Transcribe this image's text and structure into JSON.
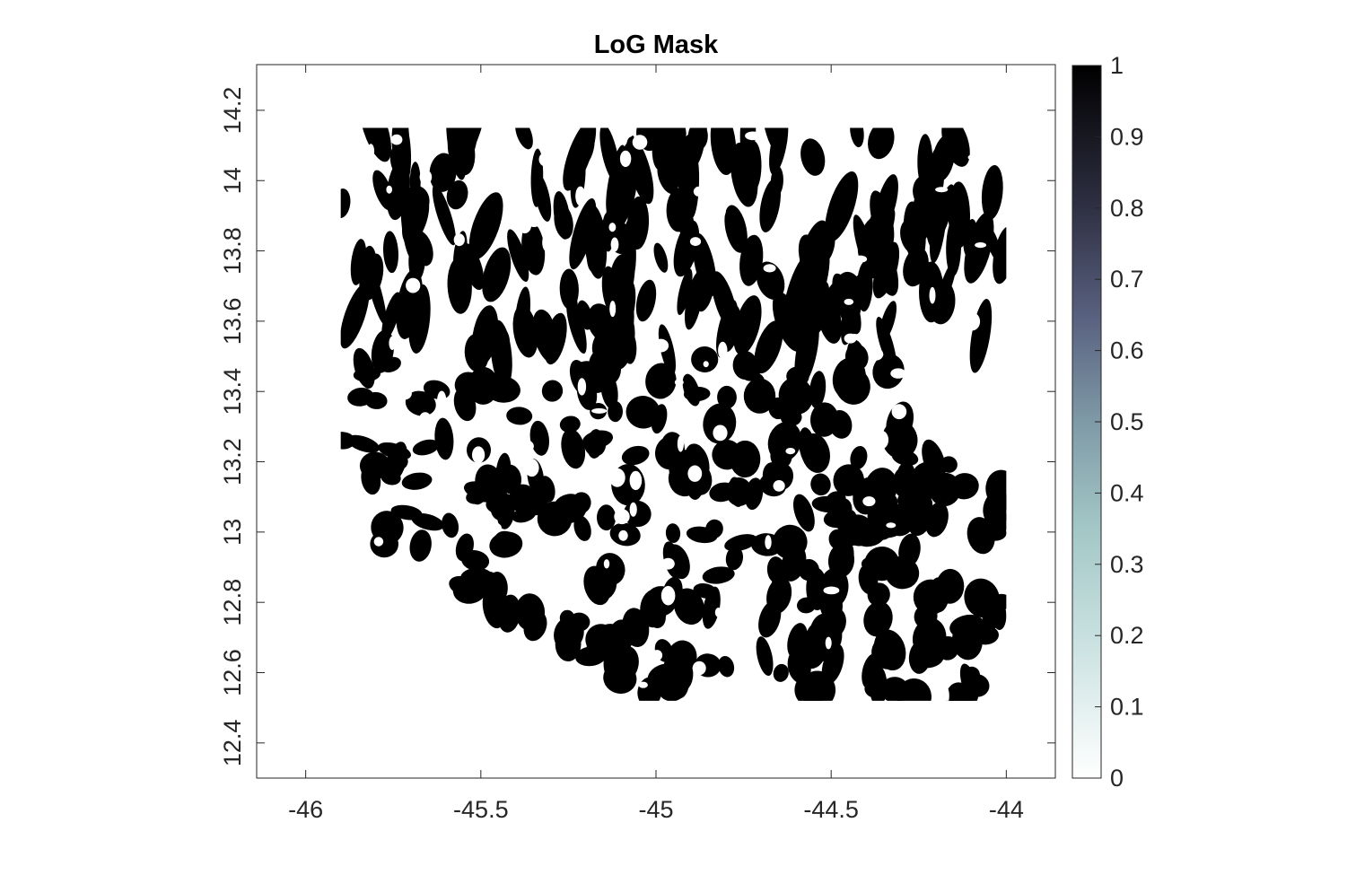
{
  "chart_data": {
    "type": "heatmap",
    "title": "LoG Mask",
    "xlabel": "",
    "ylabel": "",
    "xlim": [
      -46.14,
      -43.86
    ],
    "ylim": [
      12.3,
      14.33
    ],
    "x_ticks": [
      -46,
      -45.5,
      -45,
      -44.5,
      -44
    ],
    "x_tick_labels": [
      "-46",
      "-45.5",
      "-45",
      "-44.5",
      "-44"
    ],
    "y_ticks": [
      12.4,
      12.6,
      12.8,
      13,
      13.2,
      13.4,
      13.6,
      13.8,
      14,
      14.2
    ],
    "y_tick_labels": [
      "12.4",
      "12.6",
      "12.8",
      "13",
      "13.2",
      "13.4",
      "13.6",
      "13.8",
      "14",
      "14.2"
    ],
    "grid": false,
    "data_extent": {
      "x": [
        -45.9,
        -44.0
      ],
      "y": [
        12.52,
        14.15
      ]
    },
    "value_range": [
      0,
      1
    ],
    "description_values": "binary mask: 1 = black blobs, 0 = white",
    "colorbar": {
      "location": "right",
      "ticks": [
        0,
        0.1,
        0.2,
        0.3,
        0.4,
        0.5,
        0.6,
        0.7,
        0.8,
        0.9,
        1
      ],
      "tick_labels": [
        "0",
        "0.1",
        "0.2",
        "0.3",
        "0.4",
        "0.5",
        "0.6",
        "0.7",
        "0.8",
        "0.9",
        "1"
      ],
      "colormap": [
        "#ffffff",
        "#a8cccc",
        "#8aa0ac",
        "#5a5d80",
        "#2a2a3e",
        "#000000"
      ]
    },
    "colors": {
      "mask_on": "#000000",
      "mask_off": "#ffffff",
      "axis": "#262626"
    }
  }
}
